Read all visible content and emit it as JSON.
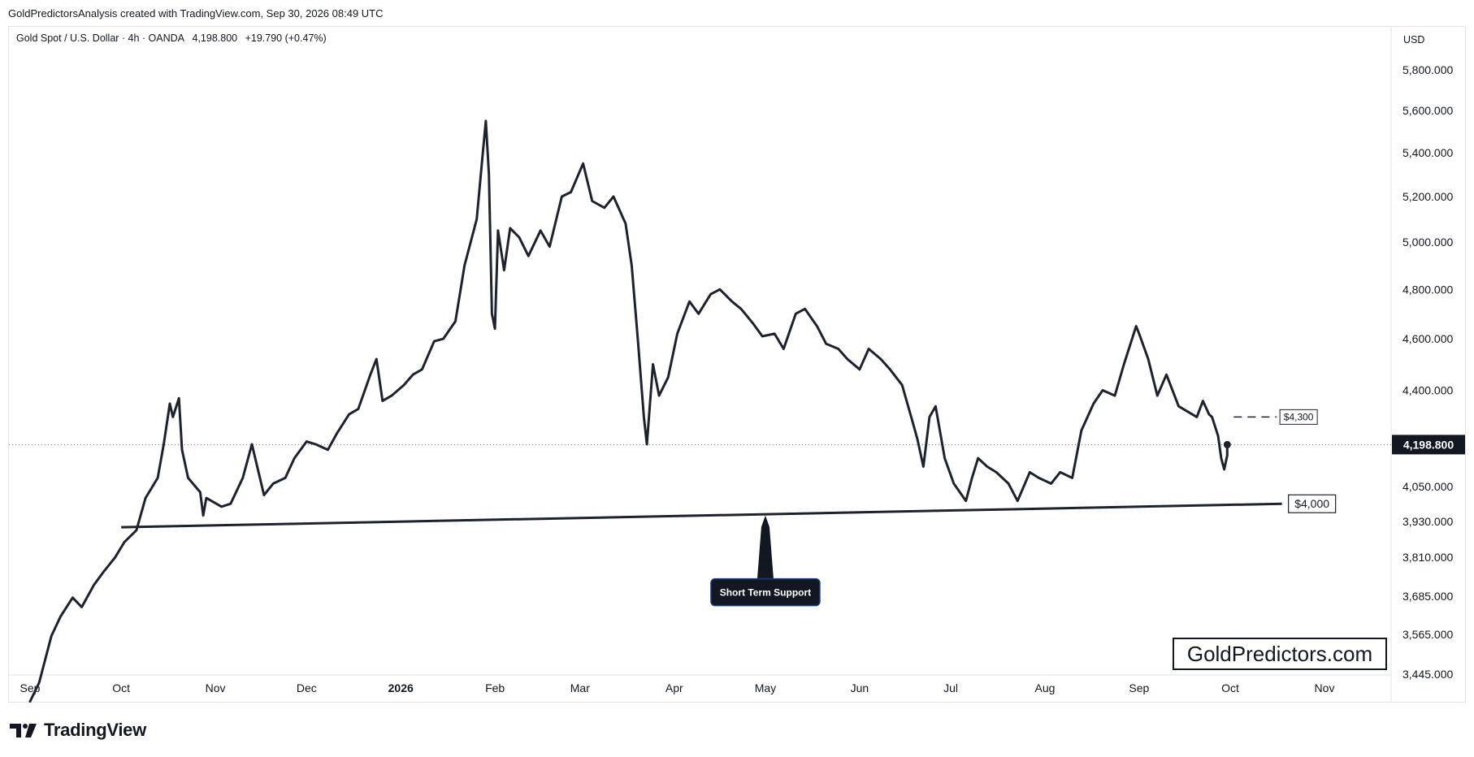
{
  "header": {
    "attribution": "GoldPredictorsAnalysis created with TradingView.com, Sep 30, 2026 08:49 UTC"
  },
  "symbol": {
    "name": "Gold Spot / U.S. Dollar · 4h · OANDA",
    "last": "4,198.800",
    "change": "+19.790 (+0.47%)"
  },
  "currency": "USD",
  "brand": {
    "name": "TradingView",
    "icon": "tradingview-logo-icon"
  },
  "watermark": "GoldPredictors.com",
  "colors": {
    "line": "#1e222d",
    "grid_dotted": "#787b86",
    "price_tag_bg": "#131722"
  },
  "chart_data": {
    "type": "line",
    "title": "Gold Spot / U.S. Dollar · 4h · OANDA",
    "x_ticks": [
      {
        "label": "Sep",
        "bold": false
      },
      {
        "label": "Oct",
        "bold": false
      },
      {
        "label": "Nov",
        "bold": false
      },
      {
        "label": "Dec",
        "bold": false
      },
      {
        "label": "2026",
        "bold": true
      },
      {
        "label": "Feb",
        "bold": false
      },
      {
        "label": "Mar",
        "bold": false
      },
      {
        "label": "Apr",
        "bold": false
      },
      {
        "label": "May",
        "bold": false
      },
      {
        "label": "Jun",
        "bold": false
      },
      {
        "label": "Jul",
        "bold": false
      },
      {
        "label": "Aug",
        "bold": false
      },
      {
        "label": "Sep",
        "bold": false
      },
      {
        "label": "Oct",
        "bold": false
      },
      {
        "label": "Nov",
        "bold": false
      }
    ],
    "x_tick_dates": [
      "2025-09-01",
      "2025-10-01",
      "2025-11-01",
      "2025-12-01",
      "2026-01-01",
      "2026-02-01",
      "2026-03-01",
      "2026-04-01",
      "2026-05-01",
      "2026-06-01",
      "2026-07-01",
      "2026-08-01",
      "2026-09-01",
      "2026-10-01",
      "2026-11-01"
    ],
    "y_scale": "log",
    "y_ticks": [
      {
        "value": 5800,
        "label": "5,800.000"
      },
      {
        "value": 5600,
        "label": "5,600.000"
      },
      {
        "value": 5400,
        "label": "5,400.000"
      },
      {
        "value": 5200,
        "label": "5,200.000"
      },
      {
        "value": 5000,
        "label": "5,000.000"
      },
      {
        "value": 4800,
        "label": "4,800.000"
      },
      {
        "value": 4600,
        "label": "4,600.000"
      },
      {
        "value": 4400,
        "label": "4,400.000"
      },
      {
        "value": 4050,
        "label": "4,050.000"
      },
      {
        "value": 3930,
        "label": "3,930.000"
      },
      {
        "value": 3810,
        "label": "3,810.000"
      },
      {
        "value": 3685,
        "label": "3,685.000"
      },
      {
        "value": 3565,
        "label": "3,565.000"
      },
      {
        "value": 3445,
        "label": "3,445.000"
      }
    ],
    "series": [
      {
        "points": [
          [
            "2025-09-01",
            3365
          ],
          [
            "2025-09-04",
            3420
          ],
          [
            "2025-09-08",
            3560
          ],
          [
            "2025-09-11",
            3620
          ],
          [
            "2025-09-15",
            3680
          ],
          [
            "2025-09-18",
            3650
          ],
          [
            "2025-09-22",
            3720
          ],
          [
            "2025-09-25",
            3760
          ],
          [
            "2025-09-29",
            3810
          ],
          [
            "2025-10-02",
            3860
          ],
          [
            "2025-10-06",
            3900
          ],
          [
            "2025-10-09",
            4010
          ],
          [
            "2025-10-13",
            4080
          ],
          [
            "2025-10-15",
            4200
          ],
          [
            "2025-10-17",
            4350
          ],
          [
            "2025-10-18",
            4300
          ],
          [
            "2025-10-20",
            4370
          ],
          [
            "2025-10-21",
            4180
          ],
          [
            "2025-10-23",
            4080
          ],
          [
            "2025-10-27",
            4030
          ],
          [
            "2025-10-28",
            3950
          ],
          [
            "2025-10-29",
            4010
          ],
          [
            "2025-11-03",
            3980
          ],
          [
            "2025-11-06",
            3990
          ],
          [
            "2025-11-10",
            4080
          ],
          [
            "2025-11-13",
            4200
          ],
          [
            "2025-11-17",
            4020
          ],
          [
            "2025-11-20",
            4060
          ],
          [
            "2025-11-24",
            4080
          ],
          [
            "2025-11-27",
            4150
          ],
          [
            "2025-12-01",
            4210
          ],
          [
            "2025-12-04",
            4200
          ],
          [
            "2025-12-08",
            4180
          ],
          [
            "2025-12-11",
            4240
          ],
          [
            "2025-12-15",
            4310
          ],
          [
            "2025-12-18",
            4330
          ],
          [
            "2025-12-22",
            4460
          ],
          [
            "2025-12-24",
            4520
          ],
          [
            "2025-12-26",
            4360
          ],
          [
            "2025-12-29",
            4380
          ],
          [
            "2026-01-02",
            4420
          ],
          [
            "2026-01-05",
            4460
          ],
          [
            "2026-01-08",
            4480
          ],
          [
            "2026-01-12",
            4590
          ],
          [
            "2026-01-15",
            4600
          ],
          [
            "2026-01-19",
            4670
          ],
          [
            "2026-01-22",
            4900
          ],
          [
            "2026-01-26",
            5100
          ],
          [
            "2026-01-28",
            5400
          ],
          [
            "2026-01-29",
            5550
          ],
          [
            "2026-01-30",
            5300
          ],
          [
            "2026-01-31",
            4700
          ],
          [
            "2026-02-01",
            4640
          ],
          [
            "2026-02-02",
            5050
          ],
          [
            "2026-02-04",
            4880
          ],
          [
            "2026-02-06",
            5060
          ],
          [
            "2026-02-09",
            5020
          ],
          [
            "2026-02-12",
            4940
          ],
          [
            "2026-02-16",
            5050
          ],
          [
            "2026-02-19",
            4980
          ],
          [
            "2026-02-23",
            5200
          ],
          [
            "2026-02-26",
            5220
          ],
          [
            "2026-03-02",
            5350
          ],
          [
            "2026-03-05",
            5180
          ],
          [
            "2026-03-09",
            5150
          ],
          [
            "2026-03-12",
            5200
          ],
          [
            "2026-03-16",
            5080
          ],
          [
            "2026-03-18",
            4900
          ],
          [
            "2026-03-20",
            4600
          ],
          [
            "2026-03-22",
            4300
          ],
          [
            "2026-03-23",
            4200
          ],
          [
            "2026-03-25",
            4500
          ],
          [
            "2026-03-27",
            4380
          ],
          [
            "2026-03-30",
            4450
          ],
          [
            "2026-04-02",
            4620
          ],
          [
            "2026-04-06",
            4750
          ],
          [
            "2026-04-09",
            4700
          ],
          [
            "2026-04-13",
            4780
          ],
          [
            "2026-04-16",
            4800
          ],
          [
            "2026-04-20",
            4750
          ],
          [
            "2026-04-23",
            4720
          ],
          [
            "2026-04-27",
            4660
          ],
          [
            "2026-04-30",
            4610
          ],
          [
            "2026-05-04",
            4620
          ],
          [
            "2026-05-07",
            4560
          ],
          [
            "2026-05-11",
            4700
          ],
          [
            "2026-05-14",
            4720
          ],
          [
            "2026-05-18",
            4650
          ],
          [
            "2026-05-21",
            4580
          ],
          [
            "2026-05-25",
            4560
          ],
          [
            "2026-05-28",
            4520
          ],
          [
            "2026-06-01",
            4480
          ],
          [
            "2026-06-04",
            4560
          ],
          [
            "2026-06-08",
            4520
          ],
          [
            "2026-06-11",
            4480
          ],
          [
            "2026-06-15",
            4420
          ],
          [
            "2026-06-18",
            4300
          ],
          [
            "2026-06-20",
            4220
          ],
          [
            "2026-06-22",
            4120
          ],
          [
            "2026-06-24",
            4300
          ],
          [
            "2026-06-26",
            4340
          ],
          [
            "2026-06-29",
            4150
          ],
          [
            "2026-07-02",
            4060
          ],
          [
            "2026-07-06",
            4000
          ],
          [
            "2026-07-08",
            4080
          ],
          [
            "2026-07-10",
            4150
          ],
          [
            "2026-07-13",
            4120
          ],
          [
            "2026-07-16",
            4100
          ],
          [
            "2026-07-20",
            4060
          ],
          [
            "2026-07-23",
            4000
          ],
          [
            "2026-07-27",
            4100
          ],
          [
            "2026-07-30",
            4080
          ],
          [
            "2026-08-03",
            4060
          ],
          [
            "2026-08-06",
            4100
          ],
          [
            "2026-08-10",
            4080
          ],
          [
            "2026-08-13",
            4250
          ],
          [
            "2026-08-17",
            4350
          ],
          [
            "2026-08-20",
            4400
          ],
          [
            "2026-08-24",
            4380
          ],
          [
            "2026-08-27",
            4500
          ],
          [
            "2026-08-31",
            4650
          ],
          [
            "2026-09-01",
            4620
          ],
          [
            "2026-09-04",
            4520
          ],
          [
            "2026-09-07",
            4380
          ],
          [
            "2026-09-10",
            4460
          ],
          [
            "2026-09-14",
            4340
          ],
          [
            "2026-09-17",
            4320
          ],
          [
            "2026-09-20",
            4300
          ],
          [
            "2026-09-22",
            4360
          ],
          [
            "2026-09-24",
            4310
          ],
          [
            "2026-09-25",
            4300
          ],
          [
            "2026-09-27",
            4230
          ],
          [
            "2026-09-28",
            4150
          ],
          [
            "2026-09-29",
            4110
          ],
          [
            "2026-09-30",
            4160
          ],
          [
            "2026-09-30",
            4198.8
          ]
        ]
      }
    ],
    "annotations": [
      {
        "type": "support_line",
        "from": [
          "2025-10-01",
          3910
        ],
        "to": [
          "2026-10-18",
          3990
        ],
        "label": "$4,000"
      },
      {
        "type": "dashed_level",
        "from": [
          "2026-09-30",
          4300
        ],
        "to": [
          "2026-10-20",
          4300
        ],
        "label": "$4,300"
      },
      {
        "type": "callout",
        "anchor": [
          "2026-05-01",
          3950
        ],
        "label": "Short Term Support"
      },
      {
        "type": "price_marker",
        "value": 4198.8,
        "label": "4,198.800"
      }
    ]
  }
}
